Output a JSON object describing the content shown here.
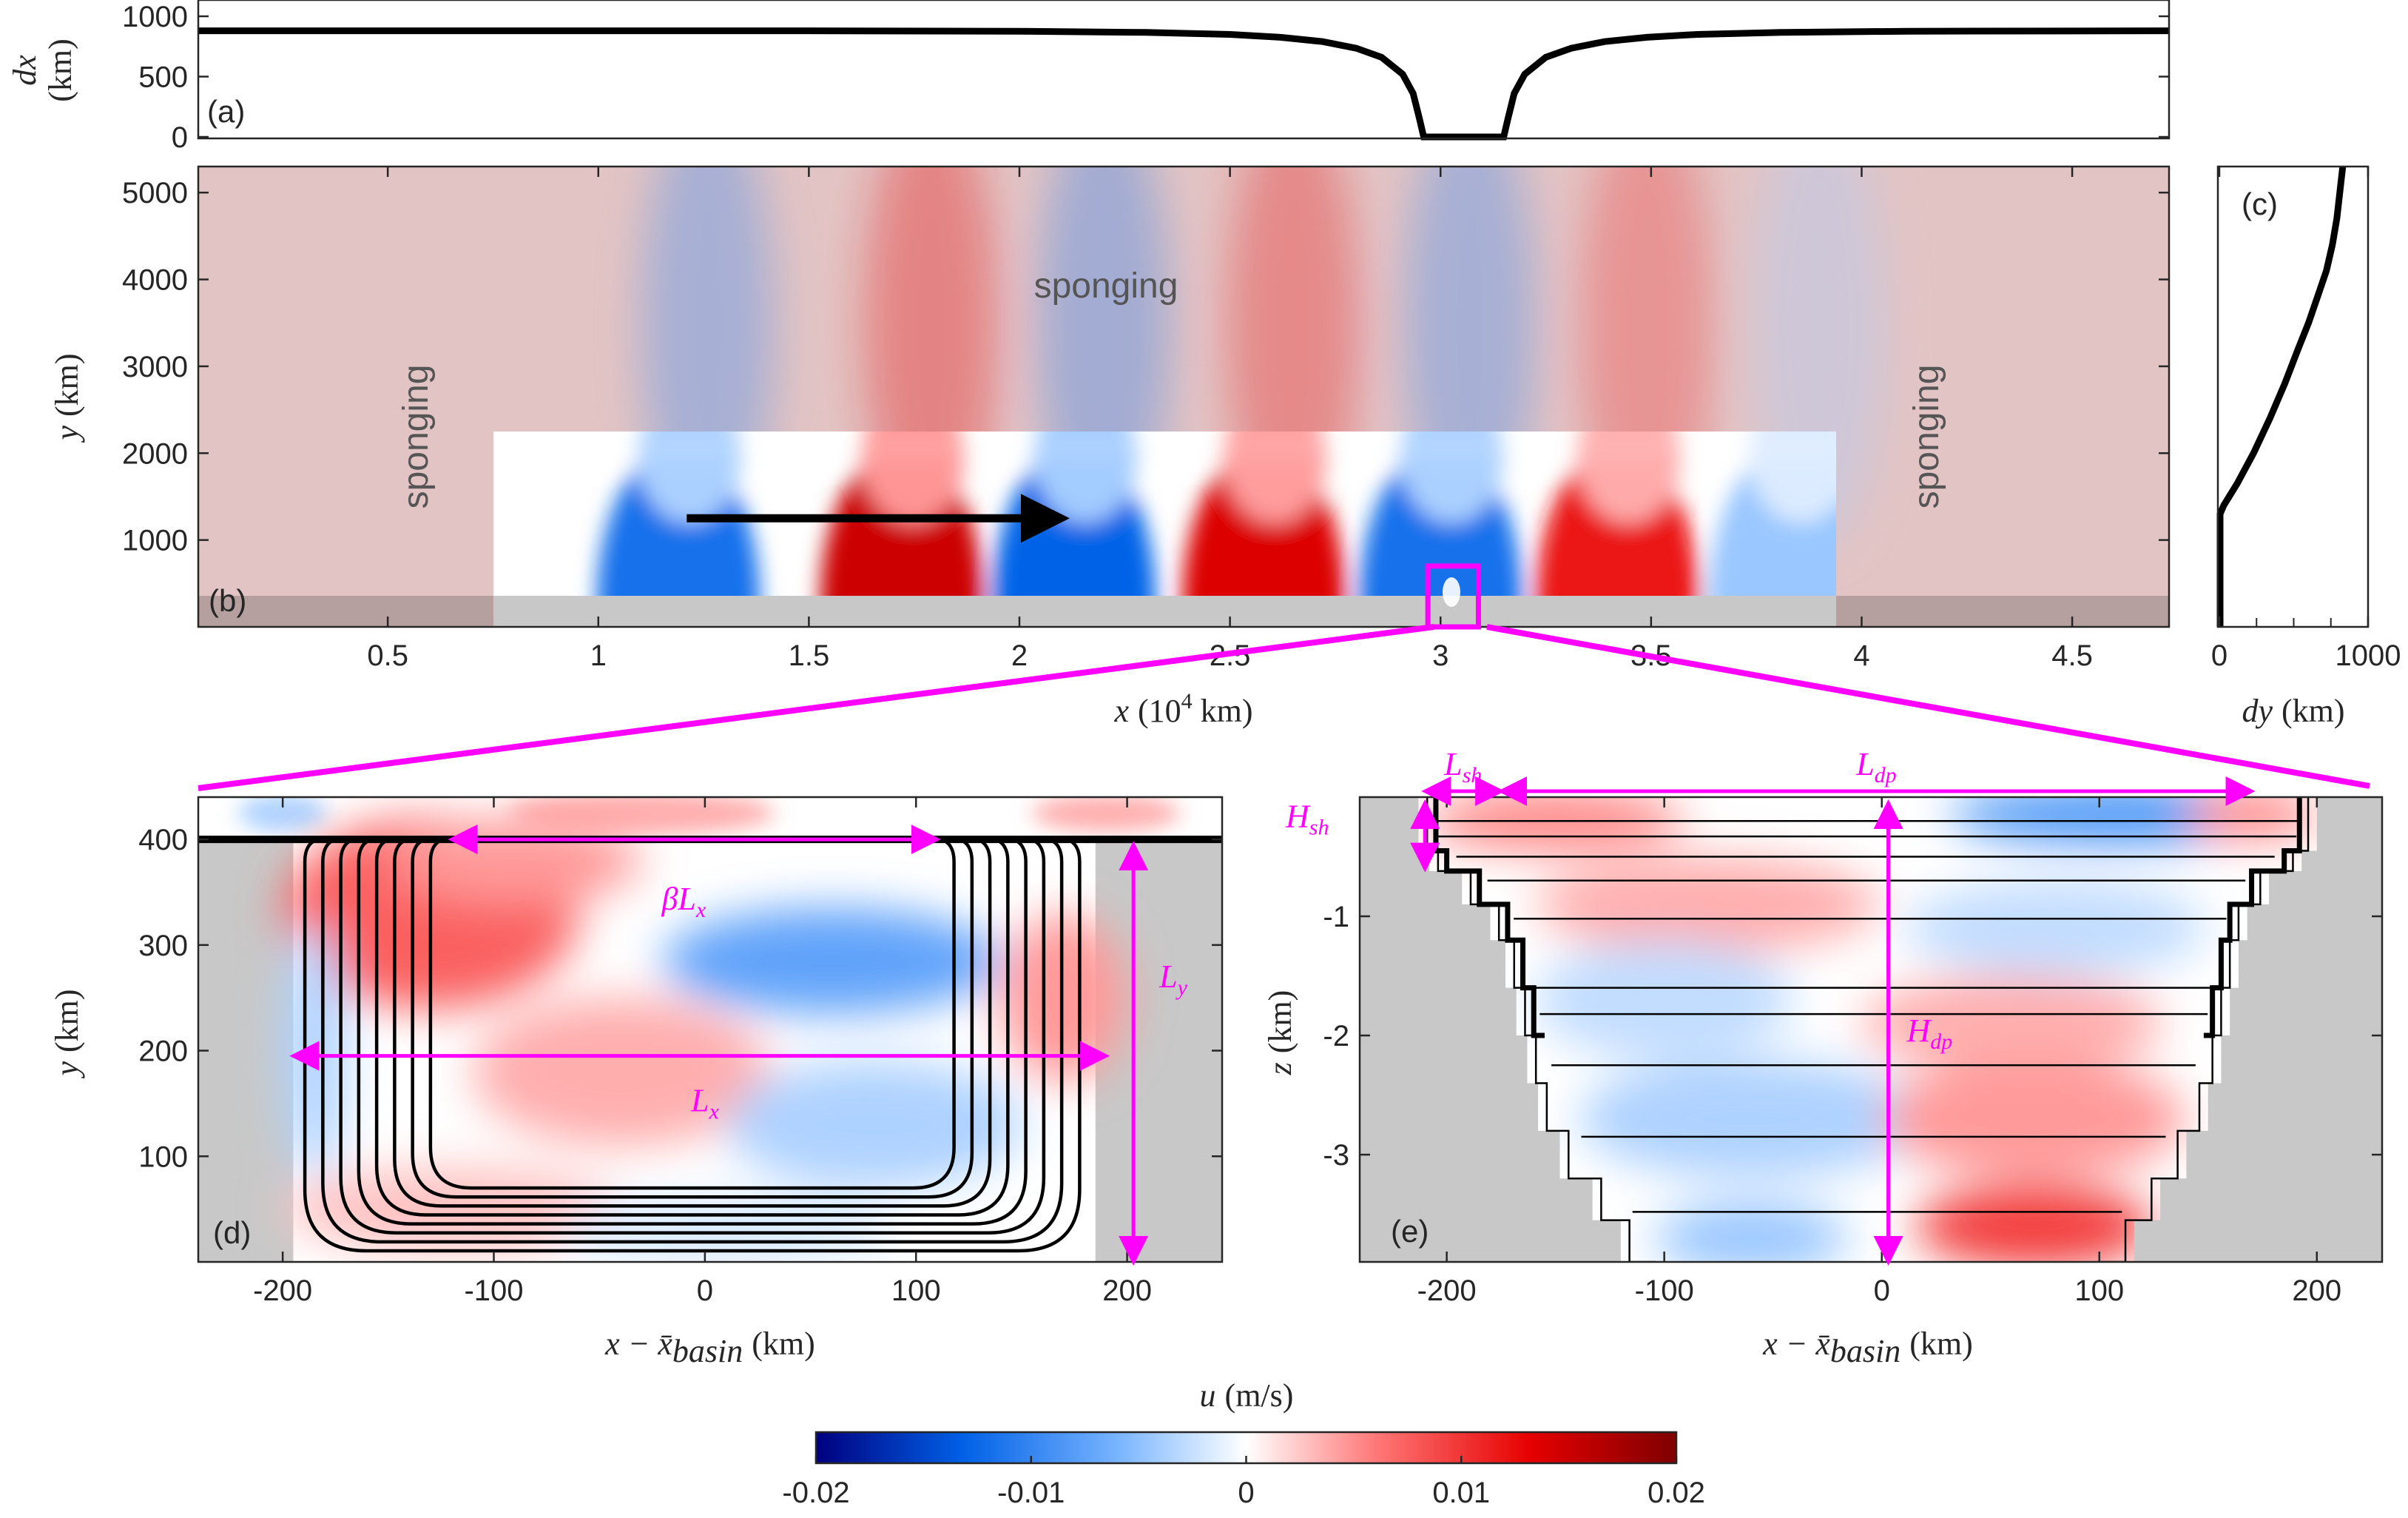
{
  "colors": {
    "magenta": "#ff00ff",
    "land": "#c8c8c8",
    "sponge_overlay": "#b07070",
    "colormap": [
      "#00007f",
      "#0060e6",
      "#78b4ff",
      "#ffffff",
      "#ff7878",
      "#e60000",
      "#7f0000"
    ]
  },
  "chart_data": [
    {
      "id": "a",
      "panel_label": "(a)",
      "type": "line",
      "xlabel": "",
      "ylabel_main": "dx",
      "ylabel_unit": "(km)",
      "xlim": [
        0.05,
        4.73
      ],
      "ylim": [
        0,
        1000
      ],
      "yticks": [
        "0",
        "500",
        "1000"
      ],
      "ytick_values": [
        0,
        500,
        1000
      ],
      "series": [
        {
          "x": [
            0.05,
            1.5,
            2.0,
            2.3,
            2.5,
            2.62,
            2.72,
            2.8,
            2.86,
            2.91,
            2.935,
            2.95,
            2.96,
            3.15,
            3.16,
            3.175,
            3.2,
            3.25,
            3.31,
            3.39,
            3.49,
            3.61,
            3.81,
            4.11,
            4.73
          ],
          "y": [
            880,
            880,
            876,
            866,
            850,
            826,
            790,
            735,
            660,
            520,
            360,
            150,
            0,
            0,
            150,
            360,
            520,
            660,
            735,
            790,
            826,
            850,
            866,
            876,
            880
          ]
        }
      ]
    },
    {
      "id": "b",
      "panel_label": "(b)",
      "type": "heatmap",
      "xlabel_main": "x",
      "xlabel_unit": "(10",
      "xlabel_exp": "4",
      "xlabel_tail": " km)",
      "ylabel_main": "y",
      "ylabel_unit": "(km)",
      "xlim": [
        0.05,
        4.73
      ],
      "ylim": [
        0,
        5300
      ],
      "xticks": [
        "0.5",
        "1",
        "1.5",
        "2",
        "2.5",
        "3",
        "3.5",
        "4",
        "4.5"
      ],
      "xtick_values": [
        0.5,
        1,
        1.5,
        2,
        2.5,
        3,
        3.5,
        4,
        4.5
      ],
      "yticks": [
        "1000",
        "2000",
        "3000",
        "4000",
        "5000"
      ],
      "ytick_values": [
        1000,
        2000,
        3000,
        4000,
        5000
      ],
      "interior_region": {
        "x": [
          0.75,
          3.94
        ],
        "y": [
          370,
          2300
        ]
      },
      "land_below_y": 370,
      "u_extrema": [
        {
          "x": 1.19,
          "u": -0.012
        },
        {
          "x": 1.72,
          "u": 0.015
        },
        {
          "x": 2.13,
          "u": -0.013
        },
        {
          "x": 2.58,
          "u": 0.014
        },
        {
          "x": 3.0,
          "u": -0.012
        },
        {
          "x": 3.42,
          "u": 0.012
        },
        {
          "x": 3.83,
          "u": -0.005
        }
      ],
      "sponge_labels": [
        "sponging",
        "sponging",
        "sponging"
      ],
      "arrow": {
        "x": [
          1.21,
          2.1
        ],
        "y": 1250
      },
      "zoom_box": {
        "x": [
          2.97,
          3.09
        ],
        "y": [
          0,
          700
        ]
      }
    },
    {
      "id": "c",
      "panel_label": "(c)",
      "type": "line",
      "xlabel_main": "dy",
      "xlabel_unit": "(km)",
      "xlim": [
        0,
        1000
      ],
      "ylim": [
        0,
        5300
      ],
      "xticks": [
        "0",
        "1000"
      ],
      "xtick_values": [
        0,
        1000
      ],
      "series": [
        {
          "x": [
            5,
            5,
            30,
            120,
            230,
            340,
            440,
            530,
            600,
            660,
            720,
            760,
            790,
            810,
            830
          ],
          "y": [
            0,
            1300,
            1400,
            1650,
            2000,
            2400,
            2800,
            3200,
            3500,
            3800,
            4100,
            4400,
            4700,
            5000,
            5300
          ]
        }
      ]
    },
    {
      "id": "d",
      "panel_label": "(d)",
      "type": "heatmap",
      "xlabel_main": "x − x̄",
      "xlabel_sub": "basin",
      "xlabel_unit": "(km)",
      "ylabel_main": "y",
      "ylabel_unit": "(km)",
      "xlim": [
        -240,
        245
      ],
      "ylim": [
        0,
        440
      ],
      "xticks": [
        "-200",
        "-100",
        "0",
        "100",
        "200"
      ],
      "xtick_values": [
        -200,
        -100,
        0,
        100,
        200
      ],
      "yticks": [
        "100",
        "200",
        "300",
        "400"
      ],
      "ytick_values": [
        100,
        200,
        300,
        400
      ],
      "basin": {
        "x": [
          -195,
          185
        ],
        "y": [
          0,
          400
        ]
      },
      "shelf_edges": [
        -120,
        115
      ],
      "annotations": [
        {
          "label": "β",
          "sub": "L",
          "sub2": "x",
          "x1": -120,
          "x2": 110,
          "y": 400
        },
        {
          "label": "L",
          "sub": "x",
          "x1": -195,
          "x2": 190,
          "y": 195
        },
        {
          "label": "L",
          "sub": "y",
          "x": 203,
          "y1": 0,
          "y2": 395
        }
      ],
      "contour_levels": 8
    },
    {
      "id": "e",
      "panel_label": "(e)",
      "type": "heatmap",
      "xlabel_main": "x − x̄",
      "xlabel_sub": "basin",
      "xlabel_unit": "(km)",
      "ylabel_main": "z",
      "ylabel_unit": "(km)",
      "xlim": [
        -240,
        230
      ],
      "ylim": [
        -3.9,
        0
      ],
      "xticks": [
        "-200",
        "-100",
        "0",
        "100",
        "200"
      ],
      "xtick_values": [
        -200,
        -100,
        0,
        100,
        200
      ],
      "yticks": [
        "-1",
        "-2",
        "-3"
      ],
      "ytick_values": [
        -1,
        -2,
        -3
      ],
      "isopycnal_depths": [
        -0.2,
        -0.33,
        -0.5,
        -0.7,
        -1.02,
        -1.6,
        -1.82,
        -2.25,
        -2.85,
        -3.48
      ],
      "annotations": [
        {
          "label": "L",
          "sub": "sh",
          "x1": -210,
          "x2": -175,
          "y": 0
        },
        {
          "label": "L",
          "sub": "dp",
          "x1": -175,
          "x2": 170,
          "y": 0
        },
        {
          "label": "H",
          "sub": "sh",
          "x": -210,
          "y1": -0.05,
          "y2": -0.6
        },
        {
          "label": "H",
          "sub": "dp",
          "x": 3,
          "y1": -0.05,
          "y2": -3.9
        }
      ]
    }
  ],
  "colorbar": {
    "title_main": "u",
    "title_unit": "(m/s)",
    "lim": [
      -0.02,
      0.02
    ],
    "ticks": [
      "-0.02",
      "-0.01",
      "0",
      "0.01",
      "0.02"
    ],
    "tick_values": [
      -0.02,
      -0.01,
      0,
      0.01,
      0.02
    ]
  }
}
